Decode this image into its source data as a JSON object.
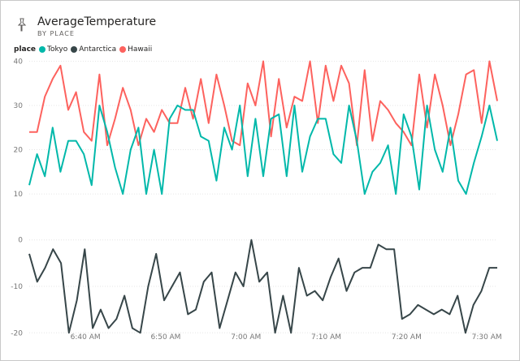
{
  "visual": {
    "title": "AverageTemperature",
    "subtitle": "BY PLACE",
    "icon": "pin-icon"
  },
  "legend": {
    "title": "place",
    "items": [
      {
        "label": "Tokyo",
        "color": "#01b8aa"
      },
      {
        "label": "Antarctica",
        "color": "#374649"
      },
      {
        "label": "Hawaii",
        "color": "#fd625e"
      }
    ]
  },
  "chart_data": {
    "type": "line",
    "x_ticks": [
      "6:40 AM",
      "6:50 AM",
      "7:00 AM",
      "7:10 AM",
      "7:20 AM",
      "7:30 AM"
    ],
    "x_tick_minutes": [
      40,
      50,
      60,
      70,
      80,
      90
    ],
    "x_range_minutes": [
      33,
      91.3
    ],
    "grid": true,
    "legend_position": "top-left",
    "panels": [
      {
        "ylim": [
          8,
          41
        ],
        "y_ticks": [
          "40",
          "30",
          "20",
          "10"
        ],
        "y_tick_values": [
          40,
          30,
          20,
          10
        ],
        "series": [
          {
            "name": "Hawaii",
            "color": "#fd625e",
            "values": [
              24,
              24,
              32,
              36,
              39,
              29,
              33,
              24,
              22,
              37,
              21,
              27,
              34,
              29,
              21,
              27,
              24,
              29,
              26,
              26,
              34,
              27,
              36,
              26,
              37,
              30,
              22,
              21,
              35,
              30,
              40,
              23,
              36,
              25,
              32,
              31,
              40,
              26,
              39,
              31,
              39,
              35,
              21,
              38,
              22,
              31,
              29,
              26,
              24,
              21,
              37,
              25,
              37,
              30,
              21,
              28,
              37,
              38,
              26,
              40,
              31
            ]
          },
          {
            "name": "Tokyo",
            "color": "#01b8aa",
            "values": [
              12,
              19,
              14,
              25,
              15,
              22,
              22,
              19,
              12,
              30,
              24,
              16,
              10,
              20,
              25,
              10,
              20,
              10,
              27,
              30,
              29,
              29,
              23,
              22,
              13,
              25,
              20,
              30,
              14,
              27,
              14,
              27,
              28,
              14,
              30,
              15,
              23,
              27,
              27,
              19,
              17,
              30,
              22,
              10,
              15,
              17,
              21,
              10,
              28,
              23,
              11,
              30,
              20,
              15,
              25,
              13,
              10,
              17,
              23,
              30,
              22
            ]
          }
        ]
      },
      {
        "ylim": [
          -21,
          1
        ],
        "y_ticks": [
          "0",
          "-10",
          "-20"
        ],
        "y_tick_values": [
          0,
          -10,
          -20
        ],
        "series": [
          {
            "name": "Antarctica",
            "color": "#374649",
            "values": [
              -3,
              -9,
              -6,
              -2,
              -5,
              -20,
              -13,
              -2,
              -19,
              -15,
              -19,
              -17,
              -12,
              -19,
              -20,
              -10,
              -3,
              -13,
              -10,
              -7,
              -16,
              -15,
              -9,
              -7,
              -19,
              -13,
              -7,
              -10,
              0,
              -9,
              -7,
              -20,
              -12,
              -20,
              -6,
              -12,
              -11,
              -13,
              -8,
              -4,
              -11,
              -7,
              -6,
              -6,
              -1,
              -2,
              -2,
              -17,
              -16,
              -14,
              -15,
              -16,
              -15,
              -16,
              -12,
              -20,
              -14,
              -11,
              -6,
              -6
            ]
          }
        ]
      }
    ]
  }
}
